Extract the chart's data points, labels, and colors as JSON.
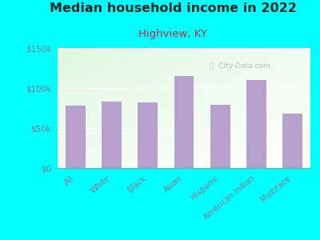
{
  "title": "Median household income in 2022",
  "subtitle": "Highview, KY",
  "categories": [
    "All",
    "White",
    "Black",
    "Asian",
    "Hispanic",
    "American Indian",
    "Multirace"
  ],
  "values": [
    78000,
    83000,
    82000,
    115000,
    79000,
    110000,
    68000
  ],
  "bar_color": "#b8a0cc",
  "background_outer": "#00FFFF",
  "title_color": "#222222",
  "subtitle_color": "#cc2244",
  "tick_color": "#887788",
  "watermark": "City-Data.com",
  "ylim": [
    0,
    150000
  ],
  "yticks": [
    0,
    50000,
    100000,
    150000
  ],
  "ytick_labels": [
    "$0",
    "$50k",
    "$100k",
    "$150k"
  ],
  "title_fontsize": 11.5,
  "subtitle_fontsize": 9.5
}
